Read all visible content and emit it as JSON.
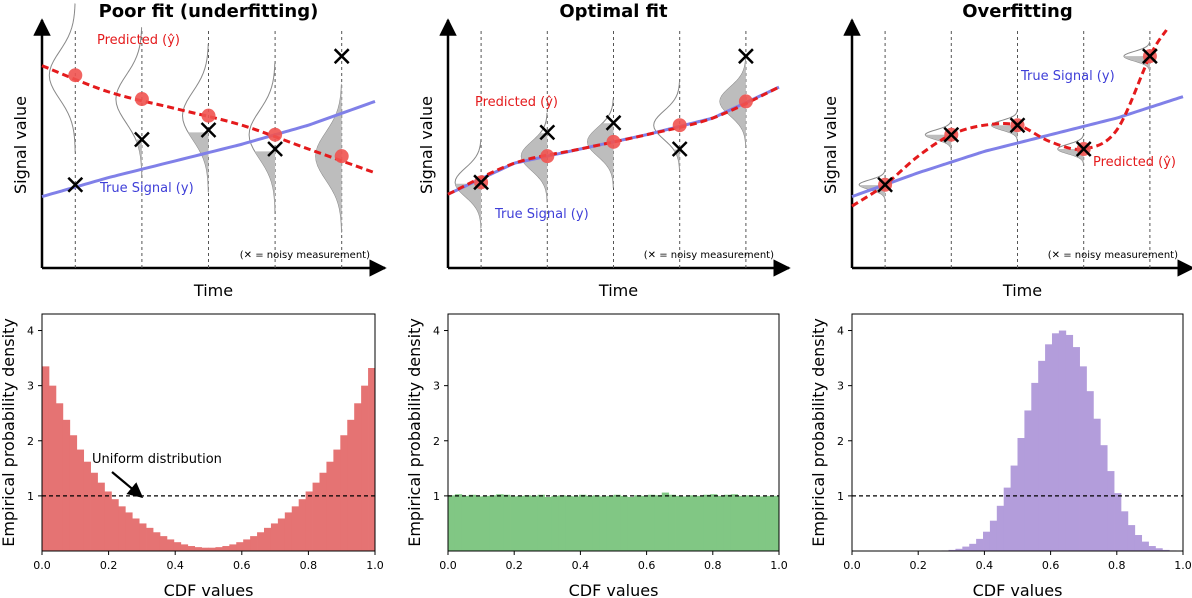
{
  "chart_data": [
    {
      "type": "line",
      "title": "Poor fit (underfitting)",
      "xlabel": "Time",
      "ylabel": "Signal value",
      "note": "(✕ = noisy measurement)",
      "x": [
        0.1,
        0.3,
        0.5,
        0.7,
        0.9
      ],
      "series": [
        {
          "name": "True Signal (y)",
          "label": "True Signal (y)",
          "color": "#8080e8",
          "x": [
            0.0,
            0.2,
            0.4,
            0.6,
            0.8,
            1.0
          ],
          "values": [
            0.3,
            0.38,
            0.45,
            0.52,
            0.6,
            0.7
          ]
        },
        {
          "name": "Predicted (ŷ)",
          "label": "Predicted (ŷ)",
          "color": "#e41a1c",
          "x": [
            0.0,
            0.2,
            0.4,
            0.6,
            0.8,
            1.0
          ],
          "values": [
            0.85,
            0.74,
            0.67,
            0.6,
            0.5,
            0.4
          ]
        },
        {
          "name": "noisy measurement",
          "x": [
            0.1,
            0.3,
            0.5,
            0.7,
            0.9
          ],
          "values": [
            0.35,
            0.54,
            0.58,
            0.5,
            0.89
          ]
        }
      ],
      "predicted_points": [
        0.81,
        0.71,
        0.64,
        0.56,
        0.47
      ],
      "pdf_width": 0.1
    },
    {
      "type": "line",
      "title": "Optimal fit",
      "xlabel": "Time",
      "ylabel": "Signal value",
      "note": "(✕ = noisy measurement)",
      "x": [
        0.1,
        0.3,
        0.5,
        0.7,
        0.9
      ],
      "series": [
        {
          "name": "True Signal (y)",
          "label": "True Signal (y)",
          "color": "#8080e8",
          "x": [
            0.0,
            0.2,
            0.4,
            0.6,
            0.8,
            1.0
          ],
          "values": [
            0.31,
            0.44,
            0.5,
            0.56,
            0.63,
            0.76
          ]
        },
        {
          "name": "Predicted (ŷ)",
          "label": "Predicted (ŷ)",
          "color": "#e41a1c",
          "x": [
            0.0,
            0.2,
            0.4,
            0.6,
            0.8,
            1.0
          ],
          "values": [
            0.31,
            0.44,
            0.5,
            0.56,
            0.63,
            0.76
          ]
        },
        {
          "name": "noisy measurement",
          "x": [
            0.1,
            0.3,
            0.5,
            0.7,
            0.9
          ],
          "values": [
            0.36,
            0.57,
            0.61,
            0.5,
            0.89
          ]
        }
      ],
      "predicted_points": [
        0.36,
        0.47,
        0.53,
        0.6,
        0.7
      ],
      "pdf_width": 0.06
    },
    {
      "type": "line",
      "title": "Overfitting",
      "xlabel": "Time",
      "ylabel": "Signal value",
      "note": "(✕ = noisy measurement)",
      "x": [
        0.1,
        0.3,
        0.5,
        0.7,
        0.9
      ],
      "series": [
        {
          "name": "True Signal (y)",
          "label": "True Signal (y)",
          "color": "#8080e8",
          "x": [
            0.0,
            0.2,
            0.4,
            0.6,
            0.8,
            1.0
          ],
          "values": [
            0.3,
            0.4,
            0.49,
            0.56,
            0.63,
            0.72
          ]
        },
        {
          "name": "Predicted (ŷ)",
          "label": "Predicted (ŷ)",
          "color": "#e41a1c",
          "x": [
            0.0,
            0.1,
            0.2,
            0.3,
            0.4,
            0.5,
            0.6,
            0.7,
            0.8,
            0.9,
            0.95
          ],
          "values": [
            0.26,
            0.35,
            0.47,
            0.56,
            0.6,
            0.6,
            0.53,
            0.5,
            0.58,
            0.89,
            1.0
          ]
        },
        {
          "name": "noisy measurement",
          "x": [
            0.1,
            0.3,
            0.5,
            0.7,
            0.9
          ],
          "values": [
            0.35,
            0.56,
            0.6,
            0.5,
            0.89
          ]
        }
      ],
      "predicted_points": [
        0.35,
        0.56,
        0.6,
        0.5,
        0.89
      ],
      "pdf_width": 0.02
    },
    {
      "type": "bar",
      "xlabel": "CDF values",
      "ylabel": "Empirical probability density",
      "xlim": [
        0,
        1
      ],
      "ylim": [
        0,
        4.3
      ],
      "xticks": [
        "0.0",
        "0.2",
        "0.4",
        "0.6",
        "0.8",
        "1.0"
      ],
      "yticks": [
        "1",
        "2",
        "3",
        "4"
      ],
      "color": "#e57373",
      "reference_line": 1,
      "annotation": "Uniform distribution",
      "values": [
        3.35,
        3.0,
        2.68,
        2.38,
        2.1,
        1.84,
        1.62,
        1.42,
        1.24,
        1.08,
        0.94,
        0.81,
        0.7,
        0.59,
        0.5,
        0.42,
        0.34,
        0.27,
        0.21,
        0.16,
        0.12,
        0.09,
        0.07,
        0.06,
        0.06,
        0.07,
        0.09,
        0.12,
        0.16,
        0.21,
        0.27,
        0.34,
        0.42,
        0.5,
        0.59,
        0.7,
        0.81,
        0.94,
        1.08,
        1.24,
        1.42,
        1.62,
        1.84,
        2.1,
        2.38,
        2.68,
        3.0,
        3.32
      ]
    },
    {
      "type": "bar",
      "xlabel": "CDF values",
      "ylabel": "Empirical probability density",
      "xlim": [
        0,
        1
      ],
      "ylim": [
        0,
        4.3
      ],
      "xticks": [
        "0.0",
        "0.2",
        "0.4",
        "0.6",
        "0.8",
        "1.0"
      ],
      "yticks": [
        "1",
        "2",
        "3",
        "4"
      ],
      "color": "#81c784",
      "reference_line": 1,
      "values": [
        1.01,
        1.03,
        1.0,
        1.02,
        0.99,
        1.0,
        1.01,
        1.03,
        1.02,
        0.99,
        1.0,
        1.01,
        1.0,
        1.02,
        0.98,
        1.0,
        1.01,
        1.0,
        0.99,
        1.02,
        1.0,
        1.01,
        0.99,
        1.0,
        1.02,
        1.0,
        0.98,
        1.01,
        1.0,
        1.02,
        1.01,
        1.06,
        1.02,
        1.0,
        0.99,
        1.01,
        1.0,
        1.02,
        1.03,
        1.0,
        1.02,
        1.03,
        1.0,
        1.01,
        1.0,
        0.99,
        1.0,
        1.0
      ]
    },
    {
      "type": "bar",
      "xlabel": "CDF values",
      "ylabel": "Empirical probability density",
      "xlim": [
        0,
        1
      ],
      "ylim": [
        0,
        4.3
      ],
      "xticks": [
        "0.0",
        "0.2",
        "0.4",
        "0.6",
        "0.8",
        "1.0"
      ],
      "yticks": [
        "1",
        "2",
        "3",
        "4"
      ],
      "color": "#b39ddb",
      "reference_line": 1,
      "values": [
        0,
        0,
        0,
        0,
        0,
        0,
        0,
        0,
        0,
        0,
        0,
        0,
        0,
        0.01,
        0.02,
        0.04,
        0.08,
        0.13,
        0.22,
        0.35,
        0.55,
        0.82,
        1.15,
        1.55,
        2.05,
        2.55,
        3.05,
        3.45,
        3.75,
        3.95,
        4.0,
        3.92,
        3.7,
        3.35,
        2.9,
        2.4,
        1.92,
        1.45,
        1.05,
        0.72,
        0.47,
        0.29,
        0.17,
        0.09,
        0.05,
        0.02,
        0.01,
        0
      ]
    }
  ]
}
